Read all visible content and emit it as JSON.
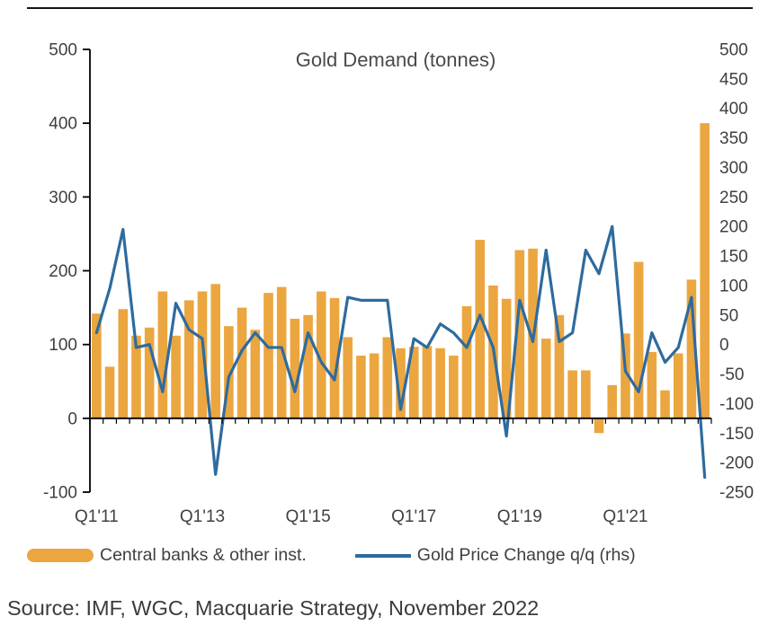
{
  "chart_data": {
    "type": "bar",
    "title": "Gold Demand (tonnes)",
    "grid": false,
    "legend_position": "bottom",
    "categories": [
      "Q1'11",
      "Q2'11",
      "Q3'11",
      "Q4'11",
      "Q1'12",
      "Q2'12",
      "Q3'12",
      "Q4'12",
      "Q1'13",
      "Q2'13",
      "Q3'13",
      "Q4'13",
      "Q1'14",
      "Q2'14",
      "Q3'14",
      "Q4'14",
      "Q1'15",
      "Q2'15",
      "Q3'15",
      "Q4'15",
      "Q1'16",
      "Q2'16",
      "Q3'16",
      "Q4'16",
      "Q1'17",
      "Q2'17",
      "Q3'17",
      "Q4'17",
      "Q1'18",
      "Q2'18",
      "Q3'18",
      "Q4'18",
      "Q1'19",
      "Q2'19",
      "Q3'19",
      "Q4'19",
      "Q1'20",
      "Q2'20",
      "Q3'20",
      "Q4'20",
      "Q1'21",
      "Q2'21",
      "Q3'21",
      "Q4'21",
      "Q1'22",
      "Q2'22",
      "Q3'22"
    ],
    "series": [
      {
        "name": "Central banks & other inst.",
        "type": "bar",
        "axis": "left",
        "color": "#EBA640",
        "values": [
          142,
          70,
          148,
          112,
          123,
          172,
          112,
          160,
          172,
          182,
          125,
          150,
          120,
          170,
          178,
          135,
          140,
          172,
          163,
          110,
          85,
          88,
          110,
          95,
          97,
          98,
          95,
          85,
          152,
          242,
          180,
          162,
          228,
          230,
          108,
          140,
          65,
          65,
          -20,
          45,
          115,
          212,
          90,
          38,
          88,
          188,
          400
        ]
      },
      {
        "name": "Gold Price Change q/q (rhs)",
        "type": "line",
        "axis": "right",
        "color": "#2E6B9E",
        "values": [
          20,
          95,
          195,
          -5,
          0,
          -80,
          70,
          25,
          10,
          -220,
          -55,
          -10,
          20,
          -5,
          -5,
          -80,
          20,
          -30,
          -60,
          80,
          75,
          75,
          75,
          -110,
          10,
          -5,
          35,
          20,
          -5,
          50,
          -5,
          -155,
          75,
          5,
          160,
          5,
          20,
          160,
          120,
          200,
          -45,
          -80,
          20,
          -30,
          -5,
          80,
          -225
        ]
      }
    ],
    "left_axis": {
      "min": -100,
      "max": 500,
      "ticks": [
        500,
        400,
        300,
        200,
        100,
        0,
        -100
      ]
    },
    "right_axis": {
      "min": -250,
      "max": 500,
      "ticks": [
        500,
        450,
        400,
        350,
        300,
        250,
        200,
        150,
        100,
        50,
        0,
        -50,
        -100,
        -150,
        -200,
        -250
      ]
    },
    "x_axis": {
      "tick_labels": [
        "Q1'11",
        "Q1'13",
        "Q1'15",
        "Q1'17",
        "Q1'19",
        "Q1'21"
      ],
      "tick_indices": [
        0,
        8,
        16,
        24,
        32,
        40
      ]
    }
  },
  "source": {
    "text": "Source: IMF, WGC, Macquarie Strategy, November 2022"
  }
}
